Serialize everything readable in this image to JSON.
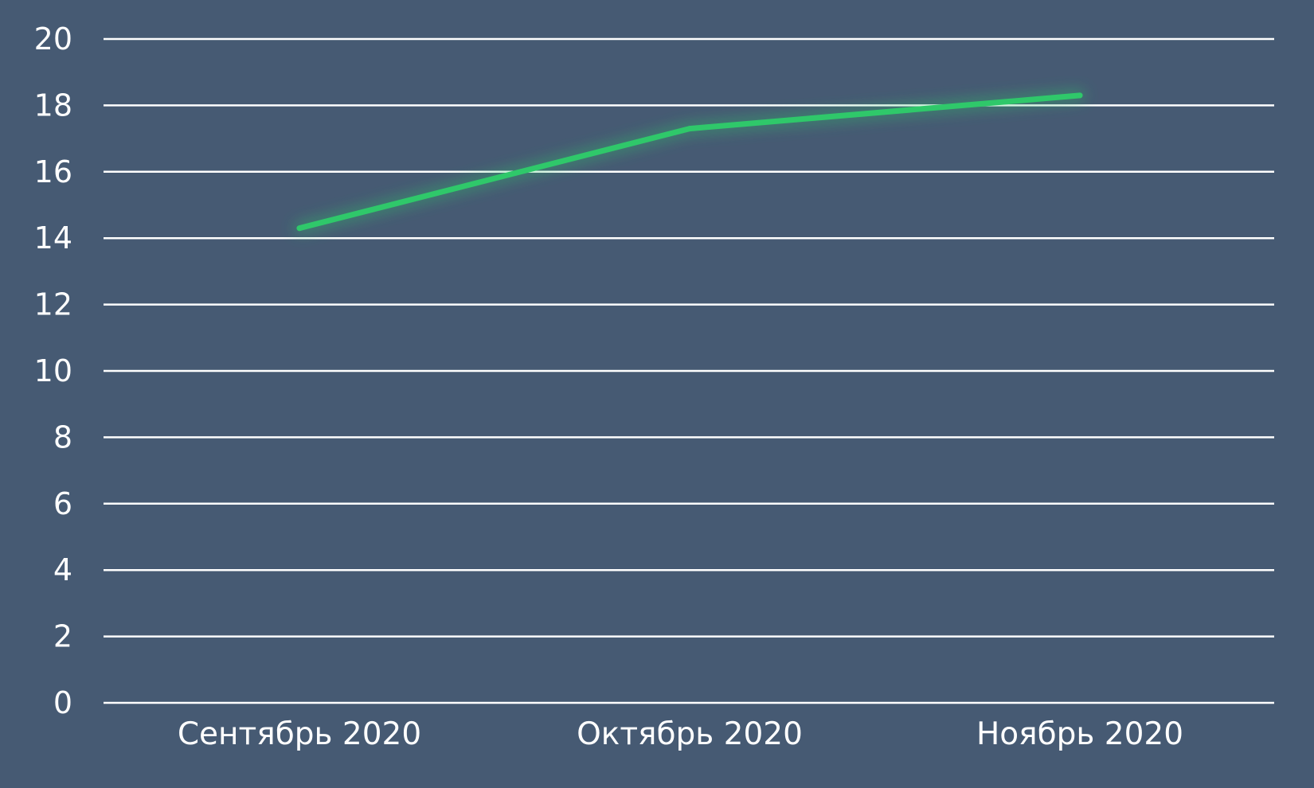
{
  "chart_data": {
    "type": "line",
    "categories": [
      "Сентябрь 2020",
      "Октябрь 2020",
      "Ноябрь 2020"
    ],
    "series": [
      {
        "values": [
          14.3,
          17.3,
          18.3
        ]
      }
    ],
    "ylim": [
      0,
      20
    ],
    "yticks": [
      0,
      2,
      4,
      6,
      8,
      10,
      12,
      14,
      16,
      18,
      20
    ],
    "grid": true,
    "legend": "none",
    "colors": {
      "background": "#465a73",
      "grid": "#ffffff",
      "line": "#2fc86a",
      "text": "#ffffff"
    }
  }
}
